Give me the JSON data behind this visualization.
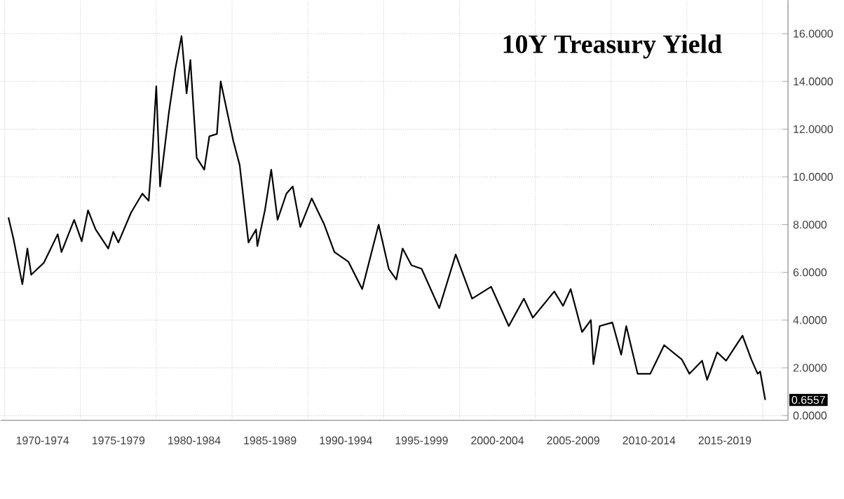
{
  "chart_data": {
    "type": "line",
    "title": "10Y Treasury Yield",
    "color": "#000000",
    "grid": true,
    "marker": "none",
    "line_style": "solid",
    "xlim": [
      "1969-10",
      "2021-09"
    ],
    "xticks": [
      {
        "value": "1970-01",
        "label": null
      },
      {
        "value": "1972-07",
        "label": "1970-1974"
      },
      {
        "value": "1975-01",
        "label": null
      },
      {
        "value": "1977-07",
        "label": "1975-1979"
      },
      {
        "value": "1980-01",
        "label": null
      },
      {
        "value": "1982-07",
        "label": "1980-1984"
      },
      {
        "value": "1985-01",
        "label": null
      },
      {
        "value": "1987-07",
        "label": "1985-1989"
      },
      {
        "value": "1990-01",
        "label": null
      },
      {
        "value": "1992-07",
        "label": "1990-1994"
      },
      {
        "value": "1995-01",
        "label": null
      },
      {
        "value": "1997-07",
        "label": "1995-1999"
      },
      {
        "value": "2000-01",
        "label": null
      },
      {
        "value": "2002-07",
        "label": "2000-2004"
      },
      {
        "value": "2005-01",
        "label": null
      },
      {
        "value": "2007-07",
        "label": "2005-2009"
      },
      {
        "value": "2010-01",
        "label": null
      },
      {
        "value": "2012-07",
        "label": "2010-2014"
      },
      {
        "value": "2015-01",
        "label": null
      },
      {
        "value": "2017-07",
        "label": "2015-2019"
      },
      {
        "value": "2020-01",
        "label": null
      }
    ],
    "ylim": [
      -0.2,
      17.4
    ],
    "yticks": [
      {
        "value": 0,
        "label": "0.0000"
      },
      {
        "value": 2,
        "label": "2.0000"
      },
      {
        "value": 4,
        "label": "4.0000"
      },
      {
        "value": 6,
        "label": "6.0000"
      },
      {
        "value": 8,
        "label": "8.0000"
      },
      {
        "value": 10,
        "label": "10.0000"
      },
      {
        "value": 12,
        "label": "12.0000"
      },
      {
        "value": 14,
        "label": "14.0000"
      },
      {
        "value": 16,
        "label": "16.0000"
      }
    ],
    "x": [
      "1970-04",
      "1970-08",
      "1971-03",
      "1971-07",
      "1971-10",
      "1972-08",
      "1973-07",
      "1973-10",
      "1974-08",
      "1975-02",
      "1975-07",
      "1976-01",
      "1976-11",
      "1977-03",
      "1977-07",
      "1978-05",
      "1979-02",
      "1979-07",
      "1979-10",
      "1980-01",
      "1980-04",
      "1980-11",
      "1981-04",
      "1981-09",
      "1982-01",
      "1982-04",
      "1982-09",
      "1983-03",
      "1983-07",
      "1984-01",
      "1984-04",
      "1985-02",
      "1985-07",
      "1986-02",
      "1986-08",
      "1986-09",
      "1987-03",
      "1987-08",
      "1988-01",
      "1988-08",
      "1989-01",
      "1989-07",
      "1990-04",
      "1991-02",
      "1991-10",
      "1992-09",
      "1993-08",
      "1994-09",
      "1995-05",
      "1995-11",
      "1996-04",
      "1996-11",
      "1997-07",
      "1998-09",
      "1999-10",
      "2000-11",
      "2002-02",
      "2003-04",
      "2004-04",
      "2004-11",
      "2006-04",
      "2006-11",
      "2007-05",
      "2008-02",
      "2008-09",
      "2008-11",
      "2009-04",
      "2010-02",
      "2010-09",
      "2011-01",
      "2011-10",
      "2012-08",
      "2013-07",
      "2014-09",
      "2015-03",
      "2016-01",
      "2016-05",
      "2017-01",
      "2017-08",
      "2018-09",
      "2019-04",
      "2019-09",
      "2019-11",
      "2020-03"
    ],
    "values": [
      8.3,
      7.4,
      5.5,
      7.0,
      5.9,
      6.4,
      7.6,
      6.85,
      8.2,
      7.3,
      8.6,
      7.8,
      7.0,
      7.7,
      7.25,
      8.5,
      9.3,
      9.0,
      11.1,
      13.8,
      9.6,
      12.7,
      14.5,
      15.9,
      13.5,
      14.9,
      10.8,
      10.3,
      11.7,
      11.8,
      14.0,
      11.5,
      10.5,
      7.25,
      7.8,
      7.1,
      8.6,
      10.3,
      8.2,
      9.3,
      9.6,
      7.9,
      9.1,
      8.0,
      6.85,
      6.45,
      5.3,
      8.0,
      6.15,
      5.7,
      7.0,
      6.3,
      6.15,
      4.5,
      6.75,
      4.9,
      5.4,
      3.75,
      4.9,
      4.1,
      5.2,
      4.6,
      5.3,
      3.5,
      4.0,
      2.15,
      3.75,
      3.9,
      2.55,
      3.75,
      1.75,
      1.75,
      2.95,
      2.35,
      1.75,
      2.3,
      1.5,
      2.65,
      2.3,
      3.35,
      2.35,
      1.75,
      1.85,
      0.6557
    ],
    "annotations": [
      {
        "text": "0.6557",
        "x": "2020-03",
        "y": 0.6557
      }
    ]
  }
}
